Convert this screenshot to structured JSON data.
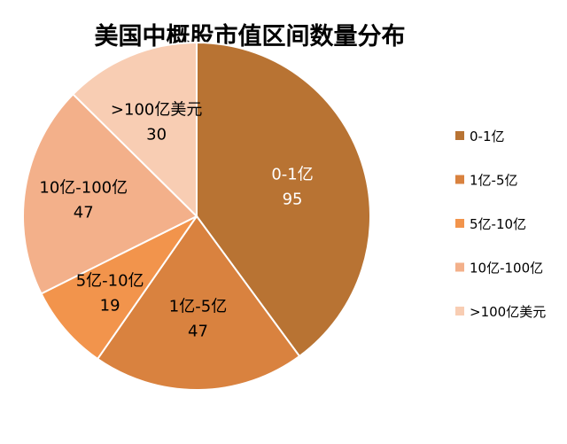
{
  "chart_data": {
    "type": "pie",
    "title": "美国中概股市值区间数量分布",
    "categories": [
      "0-1亿",
      "1亿-5亿",
      "5亿-10亿",
      "10亿-100亿",
      ">100亿美元"
    ],
    "values": [
      95,
      47,
      19,
      47,
      30
    ],
    "colors": [
      "#b87333",
      "#d9823f",
      "#f2944c",
      "#f3b08a",
      "#f8cdb3"
    ],
    "legend_position": "right",
    "data_labels": "category name and value inside slices"
  }
}
